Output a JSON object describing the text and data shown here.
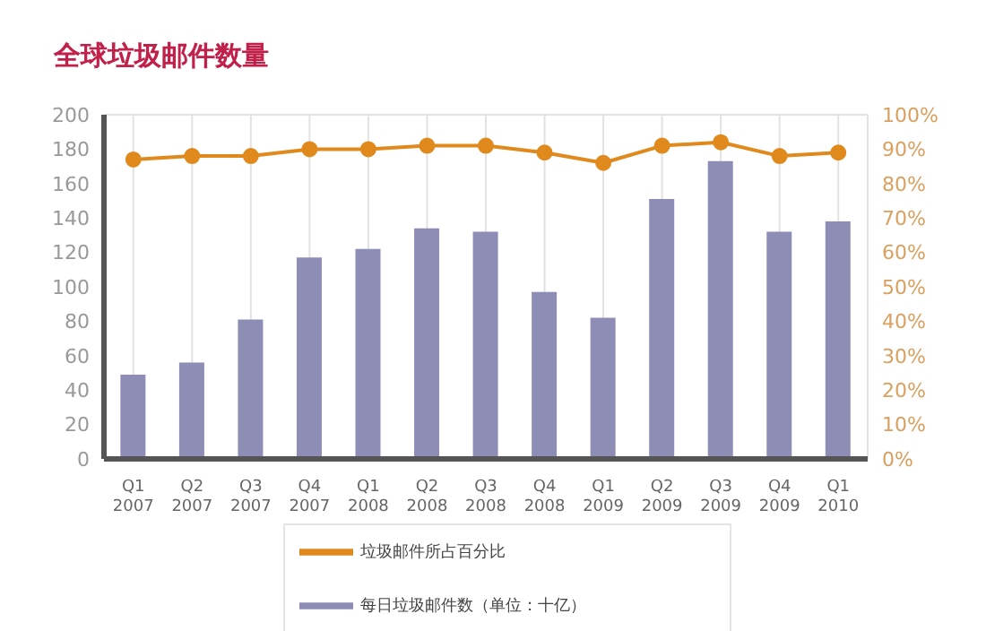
{
  "chart_data": {
    "type": "bar",
    "title": "全球垃圾邮件数量",
    "categories": [
      "Q1\n2007",
      "Q2\n2007",
      "Q3\n2007",
      "Q4\n2007",
      "Q1\n2008",
      "Q2\n2008",
      "Q3\n2008",
      "Q4\n2008",
      "Q1\n2009",
      "Q2\n2009",
      "Q3\n2009",
      "Q4\n2009",
      "Q1\n2010"
    ],
    "series": [
      {
        "name": "每日垃圾邮件数（单位：十亿）",
        "color": "#8e8db5",
        "values": [
          49,
          56,
          81,
          117,
          122,
          134,
          132,
          97,
          82,
          151,
          173,
          132,
          138
        ]
      },
      {
        "name": "垃圾邮件所占百分比",
        "type": "line",
        "axis": "y2",
        "color": "#e08a1e",
        "marker": "circle",
        "values": [
          87,
          88,
          88,
          90,
          90,
          91,
          91,
          89,
          86,
          91,
          92,
          88,
          89
        ]
      }
    ],
    "ylim": [
      0,
      200
    ],
    "yticks": [
      0,
      20,
      40,
      60,
      80,
      100,
      120,
      140,
      160,
      180,
      200
    ],
    "y2lim": [
      0,
      100
    ],
    "y2ticks": [
      {
        "value": 0,
        "label": "0%"
      },
      {
        "value": 10,
        "label": "10%"
      },
      {
        "value": 20,
        "label": "20%"
      },
      {
        "value": 30,
        "label": "30%"
      },
      {
        "value": 40,
        "label": "40%"
      },
      {
        "value": 50,
        "label": "50%"
      },
      {
        "value": 60,
        "label": "60%"
      },
      {
        "value": 70,
        "label": "70%"
      },
      {
        "value": 80,
        "label": "80%"
      },
      {
        "value": 90,
        "label": "90%"
      },
      {
        "value": 100,
        "label": "100%"
      }
    ],
    "grid": true,
    "legend": "bottom"
  }
}
